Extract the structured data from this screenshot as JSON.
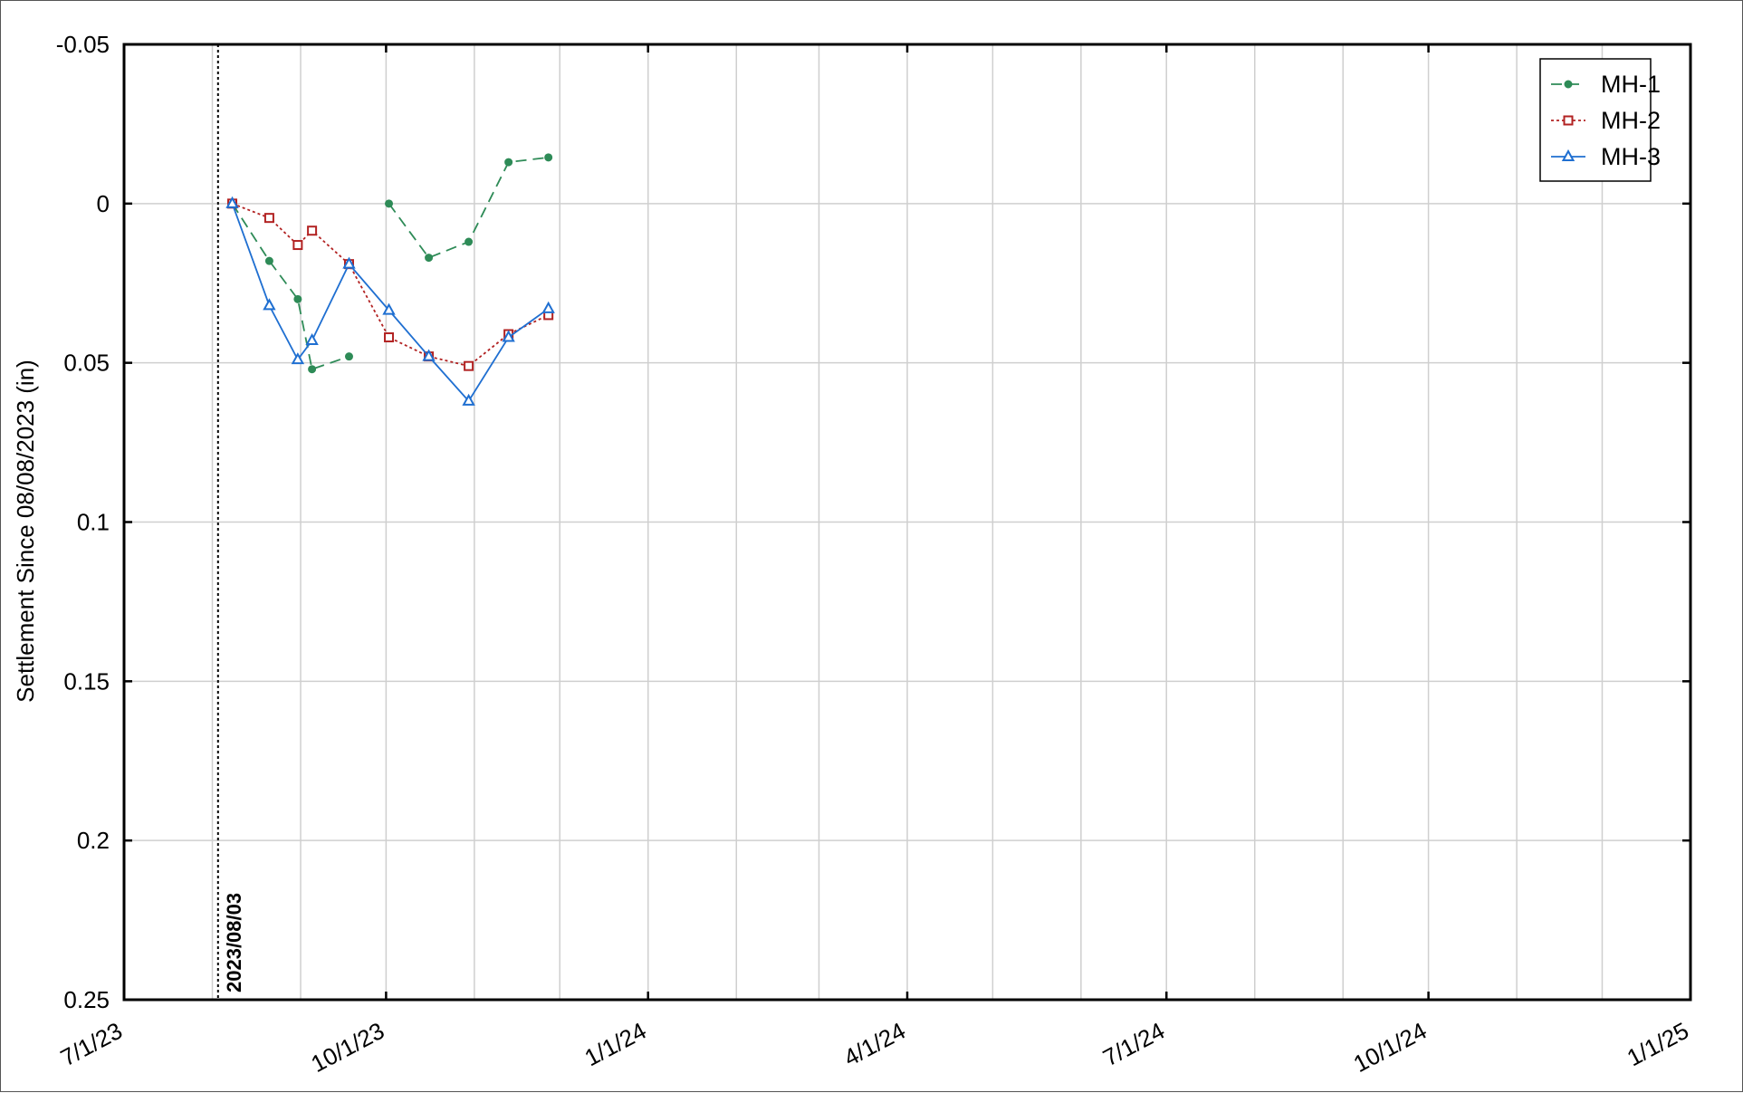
{
  "chart_data": {
    "type": "line",
    "xlabel": "",
    "ylabel": "Settlement Since 08/08/2023 (in)",
    "y_axis_inverted": true,
    "ylim": [
      0.25,
      -0.05
    ],
    "xlim": [
      "2023-07-01",
      "2025-01-01"
    ],
    "y_ticks": [
      -0.05,
      0,
      0.05,
      0.1,
      0.15,
      0.2,
      0.25
    ],
    "y_tick_labels": [
      "-0.05",
      "0",
      "0.05",
      "0.1",
      "0.15",
      "0.2",
      "0.25"
    ],
    "x_ticks": [
      "2023-07-01",
      "2023-10-01",
      "2024-01-01",
      "2024-04-01",
      "2024-07-01",
      "2024-10-01",
      "2025-01-01"
    ],
    "x_tick_labels": [
      "7/1/23",
      "10/1/23",
      "1/1/24",
      "4/1/24",
      "7/1/24",
      "10/1/24",
      "1/1/25"
    ],
    "minor_x_gridlines": [
      "2023-08-01",
      "2023-09-01",
      "2023-11-01",
      "2023-12-01",
      "2024-02-01",
      "2024-03-01",
      "2024-05-01",
      "2024-06-01",
      "2024-08-01",
      "2024-09-01",
      "2024-11-01",
      "2024-12-01"
    ],
    "grid": true,
    "legend_position": "top-right",
    "annotations": [
      {
        "type": "vertical-line",
        "x": "2023-08-03",
        "label": "2023/08/03",
        "style": "dotted"
      }
    ],
    "series": [
      {
        "name": "MH-1",
        "color": "#2e8b57",
        "line_style": "dashed",
        "marker": "circle",
        "segments": [
          [
            {
              "x": "2023-08-08",
              "y": 0.0
            },
            {
              "x": "2023-08-21",
              "y": 0.018
            },
            {
              "x": "2023-08-31",
              "y": 0.03
            },
            {
              "x": "2023-09-05",
              "y": 0.052
            },
            {
              "x": "2023-09-18",
              "y": 0.048
            }
          ],
          [
            {
              "x": "2023-10-02",
              "y": 0.0
            },
            {
              "x": "2023-10-16",
              "y": 0.017
            },
            {
              "x": "2023-10-30",
              "y": 0.012
            },
            {
              "x": "2023-11-13",
              "y": -0.013
            },
            {
              "x": "2023-11-27",
              "y": -0.0145
            }
          ]
        ]
      },
      {
        "name": "MH-2",
        "color": "#b22222",
        "line_style": "dotted",
        "marker": "square",
        "segments": [
          [
            {
              "x": "2023-08-08",
              "y": 0.0
            },
            {
              "x": "2023-08-21",
              "y": 0.0045
            },
            {
              "x": "2023-08-31",
              "y": 0.013
            },
            {
              "x": "2023-09-05",
              "y": 0.0085
            },
            {
              "x": "2023-09-18",
              "y": 0.019
            },
            {
              "x": "2023-10-02",
              "y": 0.042
            },
            {
              "x": "2023-10-16",
              "y": 0.048
            },
            {
              "x": "2023-10-30",
              "y": 0.051
            },
            {
              "x": "2023-11-13",
              "y": 0.041
            },
            {
              "x": "2023-11-27",
              "y": 0.035
            }
          ]
        ]
      },
      {
        "name": "MH-3",
        "color": "#1f6fd1",
        "line_style": "solid",
        "marker": "triangle",
        "segments": [
          [
            {
              "x": "2023-08-08",
              "y": 0.0
            },
            {
              "x": "2023-08-21",
              "y": 0.032
            },
            {
              "x": "2023-08-31",
              "y": 0.049
            },
            {
              "x": "2023-09-05",
              "y": 0.043
            },
            {
              "x": "2023-09-18",
              "y": 0.019
            },
            {
              "x": "2023-10-02",
              "y": 0.0335
            },
            {
              "x": "2023-10-16",
              "y": 0.048
            },
            {
              "x": "2023-10-30",
              "y": 0.062
            },
            {
              "x": "2023-11-13",
              "y": 0.042
            },
            {
              "x": "2023-11-27",
              "y": 0.033
            }
          ]
        ]
      }
    ]
  }
}
